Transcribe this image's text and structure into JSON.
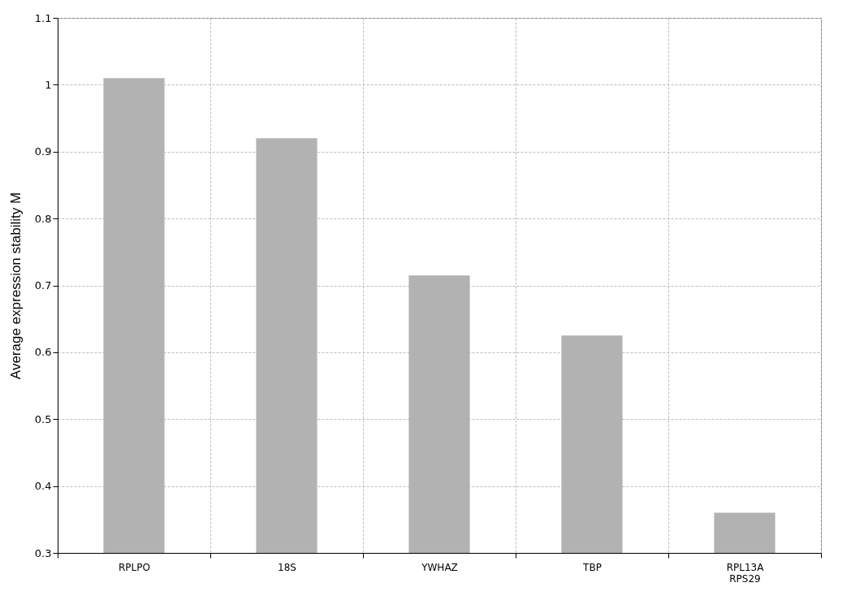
{
  "chart_data": {
    "type": "bar",
    "ylabel": "Average expression stability M",
    "categories": [
      "RPLPO",
      "18S",
      "YWHAZ",
      "TBP",
      "RPL13A\nRPS29"
    ],
    "values": [
      1.01,
      0.92,
      0.715,
      0.625,
      0.36
    ],
    "color": "#b2b2b2",
    "ylim": [
      0.3,
      1.1
    ],
    "yticks": [
      0.3,
      0.4,
      0.5,
      0.6,
      0.7,
      0.8,
      0.9,
      1,
      1.1
    ],
    "grid": true
  }
}
